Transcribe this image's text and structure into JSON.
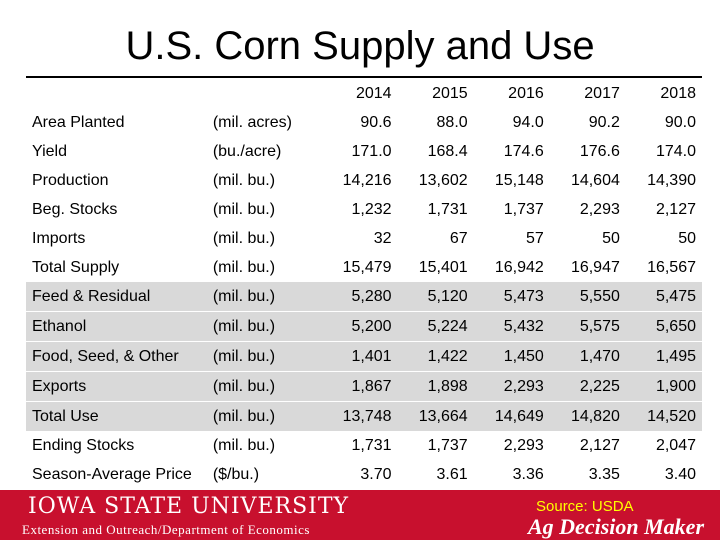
{
  "title": "U.S. Corn Supply and Use",
  "years": [
    "2014",
    "2015",
    "2016",
    "2017",
    "2018"
  ],
  "rows": [
    {
      "label": "Area Planted",
      "unit": "(mil. acres)",
      "values": [
        "90.6",
        "88.0",
        "94.0",
        "90.2",
        "90.0"
      ],
      "shaded": false
    },
    {
      "label": "Yield",
      "unit": "(bu./acre)",
      "values": [
        "171.0",
        "168.4",
        "174.6",
        "176.6",
        "174.0"
      ],
      "shaded": false
    },
    {
      "label": "Production",
      "unit": "(mil. bu.)",
      "values": [
        "14,216",
        "13,602",
        "15,148",
        "14,604",
        "14,390"
      ],
      "shaded": false
    },
    {
      "label": "Beg. Stocks",
      "unit": "(mil. bu.)",
      "values": [
        "1,232",
        "1,731",
        "1,737",
        "2,293",
        "2,127"
      ],
      "shaded": false
    },
    {
      "label": "Imports",
      "unit": "(mil. bu.)",
      "values": [
        "32",
        "67",
        "57",
        "50",
        "50"
      ],
      "shaded": false
    },
    {
      "label": "Total Supply",
      "unit": "(mil. bu.)",
      "values": [
        "15,479",
        "15,401",
        "16,942",
        "16,947",
        "16,567"
      ],
      "shaded": false
    },
    {
      "label": "Feed & Residual",
      "unit": "(mil. bu.)",
      "values": [
        "5,280",
        "5,120",
        "5,473",
        "5,550",
        "5,475"
      ],
      "shaded": true
    },
    {
      "label": "Ethanol",
      "unit": "(mil. bu.)",
      "values": [
        "5,200",
        "5,224",
        "5,432",
        "5,575",
        "5,650"
      ],
      "shaded": true
    },
    {
      "label": "Food, Seed, & Other",
      "unit": "(mil. bu.)",
      "values": [
        "1,401",
        "1,422",
        "1,450",
        "1,470",
        "1,495"
      ],
      "shaded": true
    },
    {
      "label": "Exports",
      "unit": "(mil. bu.)",
      "values": [
        "1,867",
        "1,898",
        "2,293",
        "2,225",
        "1,900"
      ],
      "shaded": true
    },
    {
      "label": "Total Use",
      "unit": "(mil. bu.)",
      "values": [
        "13,748",
        "13,664",
        "14,649",
        "14,820",
        "14,520"
      ],
      "shaded": true
    },
    {
      "label": "Ending Stocks",
      "unit": "(mil. bu.)",
      "values": [
        "1,731",
        "1,737",
        "2,293",
        "2,127",
        "2,047"
      ],
      "shaded": false
    },
    {
      "label": "Season-Average Price",
      "unit": "($/bu.)",
      "values": [
        "3.70",
        "3.61",
        "3.36",
        "3.35",
        "3.40"
      ],
      "shaded": false
    }
  ],
  "footer": {
    "university": "IOWA STATE UNIVERSITY",
    "department": "Extension and Outreach/Department of Economics",
    "source": "Source: USDA",
    "brand": "Ag Decision Maker",
    "bar_color": "#c8102e",
    "source_color": "#ffff00"
  }
}
